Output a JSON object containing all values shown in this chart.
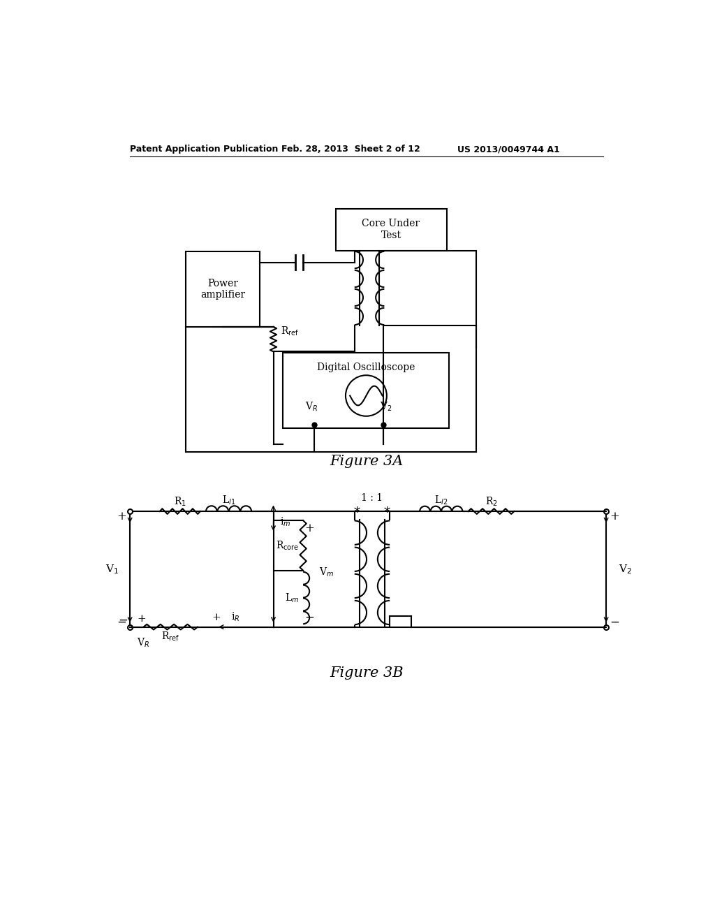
{
  "bg_color": "#ffffff",
  "header_left": "Patent Application Publication",
  "header_center": "Feb. 28, 2013  Sheet 2 of 12",
  "header_right": "US 2013/0049744 A1",
  "fig3a_caption": "Figure 3A",
  "fig3b_caption": "Figure 3B"
}
